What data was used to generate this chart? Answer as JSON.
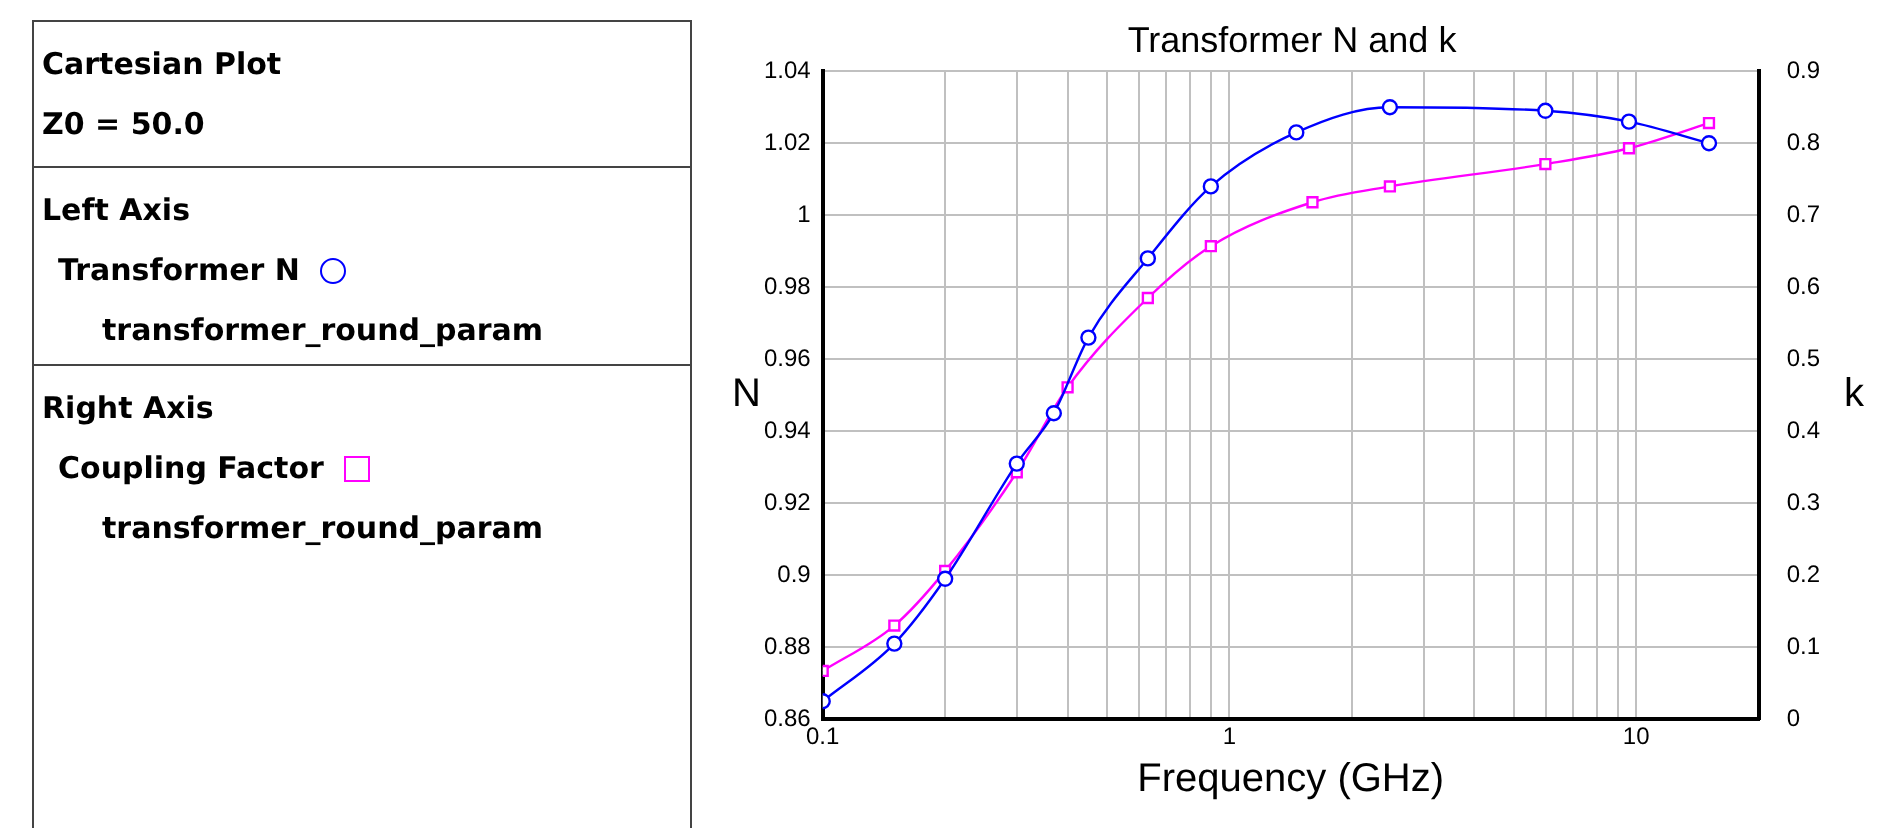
{
  "chart_data": {
    "type": "line",
    "title": "Transformer N and k",
    "xlabel": "Frequency (GHz)",
    "ylabel": "N",
    "y2label": "k",
    "annotations": [
      "Cartesian Plot",
      "Z0 = 50.0",
      "Left Axis",
      "transformer_round_param",
      "Right Axis",
      "transformer_round_param"
    ],
    "log": "x",
    "grid": true,
    "legend": "left",
    "xlim": [
      0.1,
      20
    ],
    "xticks": [
      0.1,
      {
        "value": 0.2,
        "label": null
      },
      {
        "value": 0.3,
        "label": null
      },
      {
        "value": 0.4,
        "label": null
      },
      {
        "value": 0.5,
        "label": null
      },
      {
        "value": 0.6,
        "label": null
      },
      {
        "value": 0.7,
        "label": null
      },
      {
        "value": 0.8,
        "label": null
      },
      {
        "value": 0.9,
        "label": null
      },
      1,
      {
        "value": 2,
        "label": null
      },
      {
        "value": 3,
        "label": null
      },
      {
        "value": 4,
        "label": null
      },
      {
        "value": 5,
        "label": null
      },
      {
        "value": 6,
        "label": null
      },
      {
        "value": 7,
        "label": null
      },
      {
        "value": 8,
        "label": null
      },
      {
        "value": 9,
        "label": null
      },
      10,
      {
        "value": 20,
        "label": null
      }
    ],
    "ylim": [
      0.86,
      1.04
    ],
    "yticks": [
      0.86,
      0.88,
      0.9,
      0.92,
      0.94,
      0.96,
      0.98,
      1,
      1.02,
      1.04
    ],
    "y2lim": [
      0,
      0.9
    ],
    "y2ticks": [
      0,
      0.1,
      0.2,
      0.3,
      0.4,
      0.5,
      0.6,
      0.7,
      0.8,
      0.9
    ],
    "series": [
      {
        "name": "Transformer N",
        "color": "#0000ff",
        "marker": "circle",
        "x": [
          0.1,
          0.15,
          0.2,
          0.3,
          0.37,
          0.45,
          0.63,
          0.9,
          1.46,
          2.48,
          5.98,
          9.6,
          15.1
        ],
        "values": [
          0.865,
          0.881,
          0.899,
          0.931,
          0.945,
          0.966,
          0.988,
          1.008,
          1.023,
          1.03,
          1.029,
          1.026,
          1.02
        ]
      },
      {
        "name": "Coupling Factor",
        "color": "#ff00ff",
        "marker": "square",
        "axis": "y2",
        "x": [
          0.1,
          0.15,
          0.2,
          0.3,
          0.4,
          0.63,
          0.9,
          1.6,
          2.48,
          5.98,
          9.6,
          15.1
        ],
        "values": [
          0.067,
          0.13,
          0.206,
          0.343,
          0.461,
          0.585,
          0.657,
          0.718,
          0.74,
          0.771,
          0.793,
          0.828
        ]
      }
    ]
  }
}
